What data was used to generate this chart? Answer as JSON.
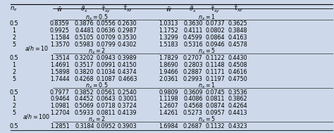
{
  "headers": [
    "$n_z$",
    "$\\bar{w}$",
    "$\\bar{\\vartheta}_x$",
    "$\\bar{\\tau}_{xy}$",
    "$\\bar{\\tau}_{xz}$",
    "$\\bar{w}$",
    "$\\bar{\\vartheta}_x$",
    "$\\bar{\\tau}_{xy}$",
    "$\\bar{\\tau}_{xz}$"
  ],
  "groups": [
    {
      "label": "$a/h = 10$",
      "label_row": 4,
      "subgroups": [
        {
          "nx_left": "$n_x = 0.5$",
          "nx_right": "$n_x = 1$",
          "rows": [
            [
              "0.5",
              "0.8359",
              "0.3876",
              "0.0556",
              "0.2630",
              "1.0313",
              "0.3630",
              "0.0737",
              "0.3625"
            ],
            [
              "1",
              "0.9925",
              "0.4481",
              "0.0636",
              "0.2987",
              "1.1752",
              "0.4111",
              "0.0802",
              "0.3848"
            ],
            [
              "2",
              "1.1584",
              "0.5105",
              "0.0709",
              "0.3530",
              "1.3299",
              "0.4599",
              "0.0864",
              "0.4163"
            ],
            [
              "5",
              "1.3570",
              "0.5983",
              "0.0799",
              "0.4302",
              "1.5183",
              "0.5316",
              "0.0946",
              "0.4578"
            ]
          ]
        },
        {
          "nx_left": "$n_x = 2$",
          "nx_right": "$n_x = 5$",
          "rows": [
            [
              "0.5",
              "1.3514",
              "0.3202",
              "0.0943",
              "0.3989",
              "1.7829",
              "0.2707",
              "0.1122",
              "0.4430"
            ],
            [
              "1",
              "1.4691",
              "0.3517",
              "0.0991",
              "0.4150",
              "1.8690",
              "0.2803",
              "0.1148",
              "0.4508"
            ],
            [
              "2",
              "1.5898",
              "0.3820",
              "0.1034",
              "0.4374",
              "1.9466",
              "0.2887",
              "0.1171",
              "0.4616"
            ],
            [
              "5",
              "1.7444",
              "0.4268",
              "0.1087",
              "0.4663",
              "2.0361",
              "0.2993",
              "0.1197",
              "0.4750"
            ]
          ]
        }
      ]
    },
    {
      "label": "$a/h = 100$",
      "label_row": 4,
      "subgroups": [
        {
          "nx_left": "$n_x = 0.5$",
          "nx_right": "$n_x = 1$",
          "rows": [
            [
              "0.5",
              "0.7977",
              "0.3852",
              "0.0561",
              "0.2540",
              "0.9809",
              "0.3609",
              "0.0745",
              "0.3536"
            ],
            [
              "1",
              "0.9464",
              "0.4452",
              "0.0643",
              "0.3001",
              "1.1198",
              "0.4086",
              "0.0811",
              "0.3862"
            ],
            [
              "2",
              "1.0981",
              "0.5069",
              "0.0718",
              "0.3724",
              "1.2607",
              "0.4568",
              "0.0874",
              "0.4264"
            ],
            [
              "5",
              "1.2704",
              "0.5933",
              "0.0811",
              "0.4139",
              "1.4261",
              "0.5273",
              "0.0957",
              "0.4413"
            ]
          ]
        },
        {
          "nx_left": "$n_x = 2$",
          "nx_right": "$n_x = 5$",
          "rows": [
            [
              "0.5",
              "1.2851",
              "0.3184",
              "0.0952",
              "0.3903",
              "1.6984",
              "0.2687",
              "0.1132",
              "0.4323"
            ]
          ]
        }
      ]
    }
  ],
  "bg_color": "#cdd9ea",
  "font_size": 5.8,
  "header_font_size": 6.2
}
